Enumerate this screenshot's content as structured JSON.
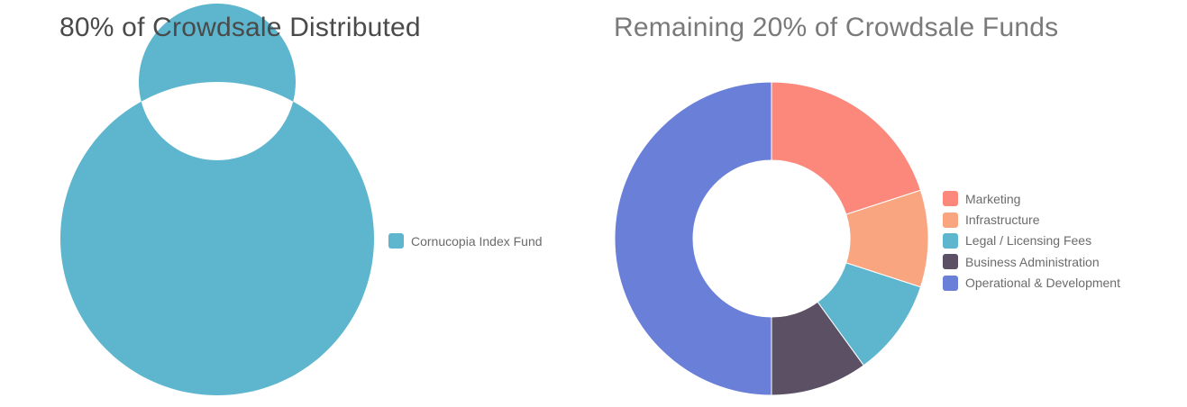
{
  "chart_data": [
    {
      "type": "pie",
      "title": "80% of Crowdsale Distributed",
      "donut": true,
      "legend_position": "right",
      "categories": [
        "Cornucopia Index Fund"
      ],
      "values": [
        100
      ],
      "colors": [
        "#5db6cd"
      ]
    },
    {
      "type": "pie",
      "title": "Remaining 20% of Crowdsale Funds",
      "donut": true,
      "legend_position": "right",
      "categories": [
        "Marketing",
        "Infrastructure",
        "Legal / Licensing Fees",
        "Business Administration",
        "Operational & Development"
      ],
      "values": [
        20,
        10,
        10,
        10,
        50
      ],
      "colors": [
        "#fc877b",
        "#f8a580",
        "#5db6cd",
        "#5b5064",
        "#6a80d8"
      ]
    }
  ]
}
